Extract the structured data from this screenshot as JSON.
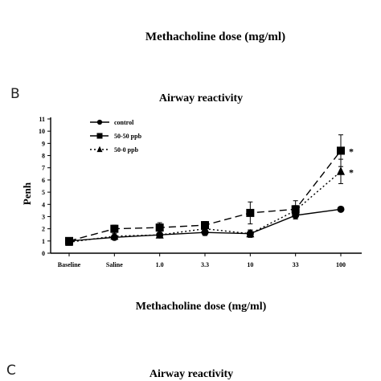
{
  "header": {
    "prev_xlabel": "Methacholine dose (mg/ml)"
  },
  "panels": {
    "b_label": "B",
    "c_label": "C",
    "c_title": "Airway reactivity"
  },
  "chart_data": {
    "type": "line",
    "title": "Airway reactivity",
    "xlabel": "Methacholine dose (mg/ml)",
    "ylabel": "Penh",
    "categories": [
      "Baseline",
      "Saline",
      "1.0",
      "3.3",
      "10",
      "33",
      "100"
    ],
    "ylim": [
      0,
      11
    ],
    "yticks": [
      0,
      1,
      2,
      3,
      4,
      5,
      6,
      7,
      8,
      9,
      10,
      11
    ],
    "grid": false,
    "legend_position": "top-left",
    "series": [
      {
        "name": "control",
        "marker": "circle",
        "line": "solid",
        "values": [
          1.0,
          1.3,
          1.5,
          1.7,
          1.6,
          3.1,
          3.6
        ],
        "errors": [
          0.2,
          0.2,
          0.2,
          0.25,
          0.3,
          0.3,
          0.2
        ]
      },
      {
        "name": "50-50 ppb",
        "marker": "square",
        "line": "dashed",
        "values": [
          1.0,
          2.0,
          2.1,
          2.3,
          3.3,
          3.6,
          8.4
        ],
        "errors": [
          0.2,
          0.3,
          0.4,
          0.3,
          0.9,
          0.7,
          1.3
        ]
      },
      {
        "name": "50-0 ppb",
        "marker": "triangle",
        "line": "dotted",
        "values": [
          0.9,
          1.4,
          1.5,
          2.0,
          1.6,
          3.5,
          6.7
        ],
        "errors": [
          0.2,
          0.2,
          0.2,
          0.2,
          0.3,
          0.4,
          1.0
        ]
      }
    ],
    "annotations": [
      {
        "category": "100",
        "series": "50-50 ppb",
        "text": "*"
      },
      {
        "category": "100",
        "series": "50-0 ppb",
        "text": "*"
      }
    ]
  }
}
